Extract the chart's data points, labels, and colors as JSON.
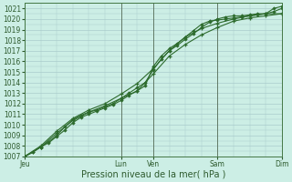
{
  "xlabel": "Pression niveau de la mer( hPa )",
  "background_color": "#cceee5",
  "grid_color": "#aacccc",
  "line_color": "#2d6b2d",
  "marker_color": "#2d6b2d",
  "ylim": [
    1007,
    1021.5
  ],
  "yticks": [
    1007,
    1008,
    1009,
    1010,
    1011,
    1012,
    1013,
    1014,
    1015,
    1016,
    1017,
    1018,
    1019,
    1020,
    1021
  ],
  "x_day_labels": [
    "Jeu",
    "Lun",
    "Ven",
    "Sam",
    "Dim"
  ],
  "x_day_positions": [
    0,
    3,
    4,
    6,
    8
  ],
  "x_vlines": [
    0,
    3,
    4,
    6,
    8
  ],
  "xlim": [
    0,
    8.0
  ],
  "series1_x": [
    0,
    0.25,
    0.5,
    0.75,
    1.0,
    1.25,
    1.5,
    1.75,
    2.0,
    2.25,
    2.5,
    2.75,
    3.0,
    3.25,
    3.5,
    3.75,
    4.0,
    4.25,
    4.5,
    4.75,
    5.0,
    5.25,
    5.5,
    5.75,
    6.0,
    6.25,
    6.5,
    6.75,
    7.0,
    7.25,
    7.5,
    7.75,
    8.0
  ],
  "series1_y": [
    1007.0,
    1007.4,
    1007.9,
    1008.4,
    1009.0,
    1009.8,
    1010.5,
    1010.9,
    1011.2,
    1011.4,
    1011.7,
    1012.0,
    1012.5,
    1013.0,
    1013.5,
    1014.0,
    1015.2,
    1016.2,
    1017.0,
    1017.5,
    1018.1,
    1018.6,
    1019.2,
    1019.7,
    1020.0,
    1020.2,
    1020.3,
    1020.3,
    1020.4,
    1020.5,
    1020.5,
    1021.0,
    1021.2
  ],
  "series2_x": [
    0,
    0.25,
    0.5,
    0.75,
    1.0,
    1.25,
    1.5,
    1.75,
    2.0,
    2.25,
    2.5,
    2.75,
    3.0,
    3.25,
    3.5,
    3.75,
    4.0,
    4.25,
    4.5,
    4.75,
    5.0,
    5.25,
    5.5,
    5.75,
    6.0,
    6.25,
    6.5,
    6.75,
    7.0,
    7.25,
    7.5,
    7.75,
    8.0
  ],
  "series2_y": [
    1007.0,
    1007.4,
    1007.9,
    1008.3,
    1008.9,
    1009.5,
    1010.2,
    1010.7,
    1011.0,
    1011.3,
    1011.6,
    1011.9,
    1012.3,
    1012.8,
    1013.2,
    1013.7,
    1015.5,
    1016.5,
    1017.2,
    1017.7,
    1018.3,
    1018.9,
    1019.5,
    1019.8,
    1019.9,
    1020.0,
    1020.1,
    1020.2,
    1020.3,
    1020.4,
    1020.5,
    1020.7,
    1021.0
  ],
  "series3_x": [
    0,
    0.5,
    1.0,
    1.5,
    2.0,
    2.5,
    3.0,
    3.5,
    4.0,
    4.5,
    5.0,
    5.5,
    6.0,
    6.5,
    7.0,
    7.5,
    8.0
  ],
  "series3_y": [
    1007.0,
    1007.9,
    1009.2,
    1010.4,
    1011.2,
    1011.8,
    1012.5,
    1013.2,
    1014.8,
    1016.5,
    1017.6,
    1018.5,
    1019.2,
    1019.8,
    1020.1,
    1020.3,
    1020.5
  ],
  "series4_x": [
    0,
    0.5,
    1.0,
    1.5,
    2.0,
    2.5,
    3.0,
    3.5,
    4.0,
    4.5,
    5.0,
    5.5,
    6.0,
    6.5,
    7.0,
    7.5,
    8.0
  ],
  "series4_y": [
    1007.0,
    1008.0,
    1009.4,
    1010.6,
    1011.4,
    1012.0,
    1012.9,
    1013.9,
    1015.3,
    1017.0,
    1018.3,
    1019.1,
    1019.6,
    1020.0,
    1020.3,
    1020.5,
    1020.5
  ]
}
